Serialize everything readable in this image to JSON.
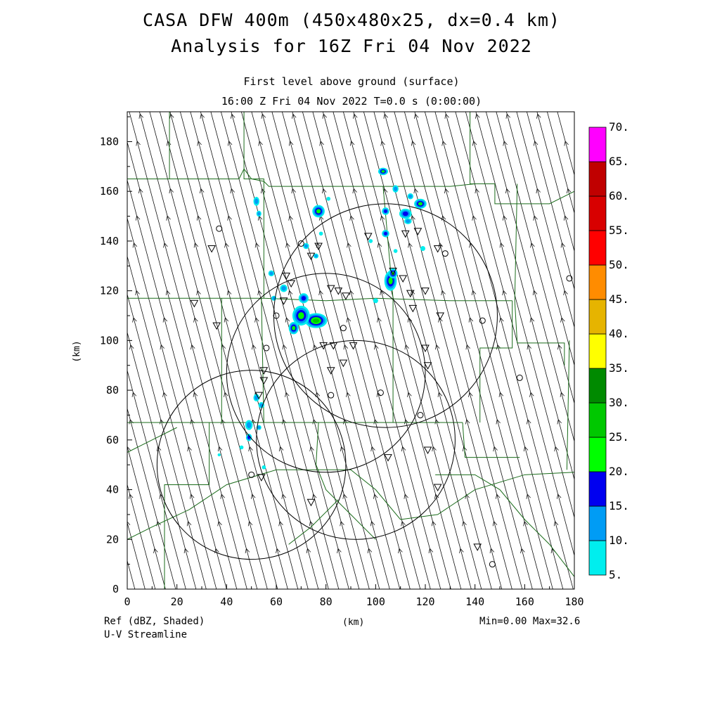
{
  "header": {
    "title_line1": "CASA DFW 400m (450x480x25, dx=0.4 km)",
    "title_line2": "Analysis for 16Z Fri 04 Nov 2022",
    "subtitle_line1": "First level above ground (surface)",
    "subtitle_line2": "16:00 Z Fri 04 Nov 2022    T=0.0 s (0:00:00)"
  },
  "footer": {
    "field_label": "Ref (dBZ, Shaded)",
    "overlay_label": "U-V Streamline",
    "xunit": "(km)",
    "minmax": "Min=0.00 Max=32.6"
  },
  "chart_data": {
    "type": "heatmap",
    "title": "Analysis for 16Z Fri 04 Nov 2022",
    "xlabel": "(km)",
    "ylabel": "(km)",
    "xlim": [
      0,
      180
    ],
    "ylim": [
      0,
      192
    ],
    "grid": false,
    "x_ticks": [
      0,
      20,
      40,
      60,
      80,
      100,
      120,
      140,
      160,
      180
    ],
    "y_ticks": [
      0,
      20,
      40,
      60,
      80,
      100,
      120,
      140,
      160,
      180
    ],
    "x_tick_labels": [
      "0",
      "20",
      "40",
      "60",
      "80",
      "100",
      "120",
      "140",
      "160",
      "180"
    ],
    "y_tick_labels": [
      "0",
      "20",
      "40",
      "60",
      "80",
      "100",
      "120",
      "140",
      "160",
      "180"
    ],
    "colorbar": {
      "label": "Ref (dBZ, Shaded)",
      "levels": [
        5,
        10,
        15,
        20,
        25,
        30,
        35,
        40,
        45,
        50,
        55,
        60,
        65,
        70
      ],
      "labels": [
        "5.",
        "10.",
        "15.",
        "20.",
        "25.",
        "30.",
        "35.",
        "40.",
        "45.",
        "50.",
        "55.",
        "60.",
        "65.",
        "70."
      ],
      "colors": [
        "#00eeee",
        "#009cf5",
        "#0000f0",
        "#00ff00",
        "#00c800",
        "#008a00",
        "#ffff00",
        "#e6b400",
        "#ff8c00",
        "#ff0000",
        "#d80000",
        "#c00000",
        "#ff00ff"
      ]
    },
    "min_value": 0.0,
    "max_value": 32.6,
    "streamline_direction_deg": 345,
    "radar_range_rings": [
      {
        "x": 50,
        "y": 50,
        "r": 38
      },
      {
        "x": 80,
        "y": 87,
        "r": 40
      },
      {
        "x": 92,
        "y": 60,
        "r": 40
      },
      {
        "x": 104,
        "y": 110,
        "r": 45
      }
    ],
    "station_triangles": [
      [
        34,
        137
      ],
      [
        27,
        115
      ],
      [
        36,
        106
      ],
      [
        55,
        88
      ],
      [
        55,
        84
      ],
      [
        53,
        78
      ],
      [
        54,
        45
      ],
      [
        74,
        35
      ],
      [
        64,
        126
      ],
      [
        66,
        123
      ],
      [
        63,
        116
      ],
      [
        74,
        134
      ],
      [
        77,
        138
      ],
      [
        82,
        121
      ],
      [
        85,
        120
      ],
      [
        88,
        118
      ],
      [
        79,
        98
      ],
      [
        83,
        98
      ],
      [
        91,
        98
      ],
      [
        87,
        91
      ],
      [
        82,
        88
      ],
      [
        97,
        142
      ],
      [
        107,
        128
      ],
      [
        112,
        143
      ],
      [
        117,
        144
      ],
      [
        111,
        125
      ],
      [
        114,
        119
      ],
      [
        115,
        113
      ],
      [
        120,
        120
      ],
      [
        125,
        137
      ],
      [
        126,
        110
      ],
      [
        120,
        97
      ],
      [
        121,
        90
      ],
      [
        121,
        56
      ],
      [
        105,
        53
      ],
      [
        125,
        41
      ],
      [
        141,
        17
      ]
    ],
    "station_circles": [
      [
        37,
        145
      ],
      [
        70,
        139
      ],
      [
        60,
        110
      ],
      [
        56,
        97
      ],
      [
        87,
        105
      ],
      [
        82,
        78
      ],
      [
        102,
        79
      ],
      [
        118,
        70
      ],
      [
        50,
        46
      ],
      [
        128,
        135
      ],
      [
        143,
        108
      ],
      [
        158,
        85
      ],
      [
        147,
        10
      ],
      [
        178,
        125
      ]
    ],
    "reflectivity_cells": [
      {
        "x": 76,
        "y": 108,
        "rx": 4.5,
        "ry": 3.0,
        "dbz": 27
      },
      {
        "x": 70,
        "y": 110,
        "rx": 3.5,
        "ry": 4.0,
        "dbz": 24
      },
      {
        "x": 67,
        "y": 105,
        "rx": 2.0,
        "ry": 2.5,
        "dbz": 24
      },
      {
        "x": 71,
        "y": 117,
        "rx": 2.0,
        "ry": 2.0,
        "dbz": 19
      },
      {
        "x": 106,
        "y": 124,
        "rx": 2.5,
        "ry": 4.0,
        "dbz": 24
      },
      {
        "x": 107,
        "y": 127,
        "rx": 1.8,
        "ry": 2.0,
        "dbz": 22
      },
      {
        "x": 77,
        "y": 152,
        "rx": 2.5,
        "ry": 2.5,
        "dbz": 23
      },
      {
        "x": 112,
        "y": 151,
        "rx": 2.5,
        "ry": 2.0,
        "dbz": 19
      },
      {
        "x": 118,
        "y": 155,
        "rx": 2.5,
        "ry": 2.0,
        "dbz": 21
      },
      {
        "x": 103,
        "y": 168,
        "rx": 2.0,
        "ry": 1.5,
        "dbz": 22
      },
      {
        "x": 104,
        "y": 143,
        "rx": 1.5,
        "ry": 1.5,
        "dbz": 19
      },
      {
        "x": 104,
        "y": 152,
        "rx": 1.5,
        "ry": 1.5,
        "dbz": 16
      },
      {
        "x": 108,
        "y": 161,
        "rx": 1.2,
        "ry": 1.5,
        "dbz": 14
      },
      {
        "x": 114,
        "y": 158,
        "rx": 1.2,
        "ry": 1.2,
        "dbz": 14
      },
      {
        "x": 113,
        "y": 148,
        "rx": 1.5,
        "ry": 1.2,
        "dbz": 13
      },
      {
        "x": 52,
        "y": 156,
        "rx": 1.2,
        "ry": 1.8,
        "dbz": 13
      },
      {
        "x": 53,
        "y": 151,
        "rx": 1.0,
        "ry": 1.2,
        "dbz": 11
      },
      {
        "x": 72,
        "y": 138,
        "rx": 1.2,
        "ry": 1.2,
        "dbz": 12
      },
      {
        "x": 76,
        "y": 134,
        "rx": 1.0,
        "ry": 1.0,
        "dbz": 10
      },
      {
        "x": 58,
        "y": 127,
        "rx": 1.2,
        "ry": 1.2,
        "dbz": 12
      },
      {
        "x": 63,
        "y": 121,
        "rx": 1.5,
        "ry": 1.5,
        "dbz": 13
      },
      {
        "x": 59,
        "y": 117,
        "rx": 1.0,
        "ry": 1.0,
        "dbz": 10
      },
      {
        "x": 52,
        "y": 77,
        "rx": 1.2,
        "ry": 1.5,
        "dbz": 14
      },
      {
        "x": 54,
        "y": 74,
        "rx": 1.2,
        "ry": 1.2,
        "dbz": 13
      },
      {
        "x": 49,
        "y": 66,
        "rx": 1.5,
        "ry": 2.0,
        "dbz": 14
      },
      {
        "x": 49,
        "y": 61,
        "rx": 1.2,
        "ry": 1.5,
        "dbz": 16
      },
      {
        "x": 46,
        "y": 57,
        "rx": 0.8,
        "ry": 0.8,
        "dbz": 9
      },
      {
        "x": 53,
        "y": 65,
        "rx": 1.0,
        "ry": 1.0,
        "dbz": 11
      },
      {
        "x": 37,
        "y": 54,
        "rx": 0.6,
        "ry": 0.6,
        "dbz": 8
      },
      {
        "x": 55,
        "y": 49,
        "rx": 0.8,
        "ry": 0.8,
        "dbz": 9
      },
      {
        "x": 78,
        "y": 143,
        "rx": 0.8,
        "ry": 0.8,
        "dbz": 9
      },
      {
        "x": 100,
        "y": 116,
        "rx": 1.0,
        "ry": 1.0,
        "dbz": 9
      },
      {
        "x": 98,
        "y": 140,
        "rx": 0.8,
        "ry": 0.8,
        "dbz": 8
      },
      {
        "x": 119,
        "y": 137,
        "rx": 1.0,
        "ry": 1.0,
        "dbz": 9
      },
      {
        "x": 81,
        "y": 157,
        "rx": 0.8,
        "ry": 0.8,
        "dbz": 8
      },
      {
        "x": 108,
        "y": 136,
        "rx": 0.8,
        "ry": 0.8,
        "dbz": 9
      }
    ]
  }
}
